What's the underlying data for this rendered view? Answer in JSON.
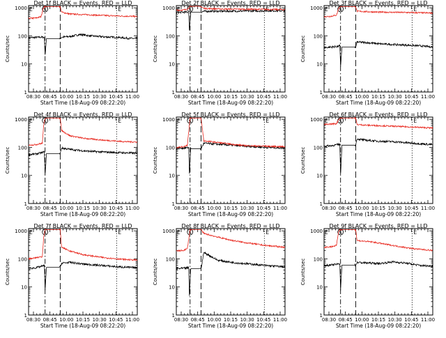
{
  "figure": {
    "colors": {
      "events": "#000000",
      "lld": "#e8261c",
      "axis": "#000000",
      "background": "#ffffff"
    },
    "common": {
      "xlabel": "Start Time (18-Aug-09 08:22:20)",
      "ylabel": "Counts/sec",
      "x_ticks": [
        "08:30",
        "08:45",
        "10:00",
        "10:15",
        "10:30",
        "10:45",
        "11:00"
      ],
      "y_ticks": [
        "1",
        "10",
        "100",
        "1000"
      ],
      "y_scale": "log",
      "ylim": [
        1,
        1200
      ],
      "xlim_minutes": [
        0,
        158
      ],
      "markers": [
        {
          "label": "S",
          "style": "dash-dot",
          "x_minute": 24
        },
        {
          "label": "",
          "style": "dashed",
          "x_minute": 46
        },
        {
          "label": "E",
          "style": "dotted",
          "x_minute": 128
        }
      ]
    }
  },
  "chart_data": [
    {
      "type": "line",
      "title": "Det 1f BLACK = Events, RED = LLD",
      "saa": [
        24,
        46
      ],
      "markers_start": "E",
      "series": [
        {
          "name": "Events",
          "points": [
            [
              0,
              85
            ],
            [
              10,
              88
            ],
            [
              20,
              90
            ],
            [
              23,
              88
            ],
            [
              24,
              20
            ],
            [
              26,
              80
            ],
            [
              46,
              80
            ],
            [
              48,
              90
            ],
            [
              60,
              95
            ],
            [
              75,
              112
            ],
            [
              90,
              100
            ],
            [
              110,
              92
            ],
            [
              130,
              88
            ],
            [
              145,
              82
            ],
            [
              158,
              80
            ]
          ]
        },
        {
          "name": "LLD",
          "points": [
            [
              0,
              420
            ],
            [
              10,
              430
            ],
            [
              18,
              480
            ],
            [
              21,
              900
            ],
            [
              23,
              1100
            ],
            [
              46,
              1100
            ],
            [
              48,
              700
            ],
            [
              60,
              600
            ],
            [
              90,
              560
            ],
            [
              120,
              520
            ],
            [
              145,
              500
            ],
            [
              158,
              490
            ]
          ]
        }
      ]
    },
    {
      "type": "line",
      "title": "Det 2f BLACK = Events, RED = LLD",
      "saa": [
        20,
        36
      ],
      "markers_start": "E",
      "series": [
        {
          "name": "Events",
          "points": [
            [
              0,
              680
            ],
            [
              10,
              700
            ],
            [
              18,
              700
            ],
            [
              19,
              150
            ],
            [
              21,
              700
            ],
            [
              36,
              700
            ],
            [
              40,
              750
            ],
            [
              80,
              760
            ],
            [
              130,
              780
            ],
            [
              158,
              790
            ]
          ]
        },
        {
          "name": "LLD",
          "points": [
            [
              0,
              820
            ],
            [
              10,
              830
            ],
            [
              16,
              900
            ],
            [
              20,
              1100
            ],
            [
              30,
              1150
            ],
            [
              36,
              1100
            ],
            [
              40,
              950
            ],
            [
              70,
              900
            ],
            [
              130,
              880
            ],
            [
              158,
              860
            ]
          ]
        }
      ]
    },
    {
      "type": "line",
      "title": "Det 3f BLACK = Events, RED = LLD",
      "saa": [
        24,
        46
      ],
      "markers_start": "E",
      "series": [
        {
          "name": "Events",
          "points": [
            [
              0,
              38
            ],
            [
              10,
              40
            ],
            [
              20,
              42
            ],
            [
              23,
              45
            ],
            [
              24,
              8
            ],
            [
              26,
              40
            ],
            [
              46,
              40
            ],
            [
              48,
              60
            ],
            [
              60,
              58
            ],
            [
              80,
              52
            ],
            [
              110,
              48
            ],
            [
              140,
              44
            ],
            [
              158,
              40
            ]
          ]
        },
        {
          "name": "LLD",
          "points": [
            [
              0,
              480
            ],
            [
              10,
              500
            ],
            [
              18,
              550
            ],
            [
              21,
              900
            ],
            [
              23,
              1100
            ],
            [
              46,
              1100
            ],
            [
              48,
              750
            ],
            [
              80,
              700
            ],
            [
              120,
              680
            ],
            [
              158,
              650
            ]
          ]
        }
      ]
    },
    {
      "type": "line",
      "title": "Det 4f BLACK = Events, RED = LLD",
      "saa": [
        24,
        46
      ],
      "markers_start": "E",
      "series": [
        {
          "name": "Events",
          "points": [
            [
              0,
              55
            ],
            [
              10,
              58
            ],
            [
              20,
              65
            ],
            [
              23,
              70
            ],
            [
              24,
              10
            ],
            [
              26,
              60
            ],
            [
              46,
              60
            ],
            [
              48,
              95
            ],
            [
              60,
              85
            ],
            [
              80,
              75
            ],
            [
              100,
              70
            ],
            [
              130,
              65
            ],
            [
              158,
              62
            ]
          ]
        },
        {
          "name": "LLD",
          "points": [
            [
              0,
              120
            ],
            [
              10,
              125
            ],
            [
              20,
              140
            ],
            [
              22,
              600
            ],
            [
              24,
              1100
            ],
            [
              46,
              1100
            ],
            [
              48,
              400
            ],
            [
              60,
              260
            ],
            [
              80,
              210
            ],
            [
              110,
              180
            ],
            [
              140,
              160
            ],
            [
              158,
              155
            ]
          ]
        }
      ]
    },
    {
      "type": "line",
      "title": "Det 5f BLACK = Events, RED = LLD",
      "saa": [
        20,
        36
      ],
      "markers_start": "E",
      "series": [
        {
          "name": "Events",
          "points": [
            [
              0,
              92
            ],
            [
              10,
              95
            ],
            [
              18,
              98
            ],
            [
              19,
              12
            ],
            [
              21,
              90
            ],
            [
              36,
              90
            ],
            [
              40,
              140
            ],
            [
              60,
              130
            ],
            [
              80,
              120
            ],
            [
              100,
              110
            ],
            [
              130,
              100
            ],
            [
              158,
              95
            ]
          ]
        },
        {
          "name": "LLD",
          "points": [
            [
              0,
              100
            ],
            [
              10,
              105
            ],
            [
              16,
              120
            ],
            [
              20,
              1100
            ],
            [
              30,
              1100
            ],
            [
              36,
              1100
            ],
            [
              40,
              170
            ],
            [
              60,
              150
            ],
            [
              80,
              130
            ],
            [
              100,
              115
            ],
            [
              130,
              110
            ],
            [
              158,
              105
            ]
          ]
        }
      ]
    },
    {
      "type": "line",
      "title": "Det 6f BLACK = Events, RED = LLD",
      "saa": [
        24,
        46
      ],
      "markers_start": "E",
      "series": [
        {
          "name": "Events",
          "points": [
            [
              0,
              110
            ],
            [
              10,
              115
            ],
            [
              20,
              125
            ],
            [
              23,
              130
            ],
            [
              24,
              10
            ],
            [
              26,
              120
            ],
            [
              46,
              120
            ],
            [
              48,
              200
            ],
            [
              60,
              180
            ],
            [
              80,
              165
            ],
            [
              100,
              160
            ],
            [
              130,
              140
            ],
            [
              158,
              125
            ]
          ]
        },
        {
          "name": "LLD",
          "points": [
            [
              0,
              650
            ],
            [
              10,
              680
            ],
            [
              18,
              700
            ],
            [
              21,
              950
            ],
            [
              23,
              1100
            ],
            [
              46,
              1100
            ],
            [
              48,
              650
            ],
            [
              60,
              620
            ],
            [
              90,
              580
            ],
            [
              120,
              540
            ],
            [
              158,
              490
            ]
          ]
        }
      ]
    },
    {
      "type": "line",
      "title": "Det 7f BLACK = Events, RED = LLD",
      "saa": [
        24,
        46
      ],
      "markers_start": "E",
      "series": [
        {
          "name": "Events",
          "points": [
            [
              0,
              45
            ],
            [
              10,
              48
            ],
            [
              20,
              55
            ],
            [
              23,
              58
            ],
            [
              24,
              8
            ],
            [
              26,
              50
            ],
            [
              46,
              50
            ],
            [
              48,
              70
            ],
            [
              60,
              75
            ],
            [
              80,
              65
            ],
            [
              100,
              60
            ],
            [
              130,
              52
            ],
            [
              158,
              48
            ]
          ]
        },
        {
          "name": "LLD",
          "points": [
            [
              0,
              100
            ],
            [
              10,
              110
            ],
            [
              20,
              120
            ],
            [
              22,
              600
            ],
            [
              24,
              1100
            ],
            [
              46,
              1100
            ],
            [
              48,
              260
            ],
            [
              60,
              190
            ],
            [
              80,
              140
            ],
            [
              110,
              110
            ],
            [
              140,
              95
            ],
            [
              158,
              90
            ]
          ]
        }
      ]
    },
    {
      "type": "line",
      "title": "Det 8f BLACK = Events, RED = LLD",
      "saa": [
        20,
        36
      ],
      "markers_start": "E",
      "series": [
        {
          "name": "Events",
          "points": [
            [
              0,
              45
            ],
            [
              10,
              46
            ],
            [
              18,
              48
            ],
            [
              19,
              5
            ],
            [
              21,
              45
            ],
            [
              36,
              45
            ],
            [
              40,
              170
            ],
            [
              60,
              90
            ],
            [
              80,
              75
            ],
            [
              100,
              68
            ],
            [
              130,
              58
            ],
            [
              158,
              52
            ]
          ]
        },
        {
          "name": "LLD",
          "points": [
            [
              0,
              190
            ],
            [
              10,
              200
            ],
            [
              16,
              230
            ],
            [
              20,
              1100
            ],
            [
              30,
              1100
            ],
            [
              36,
              1100
            ],
            [
              40,
              800
            ],
            [
              60,
              600
            ],
            [
              80,
              460
            ],
            [
              100,
              380
            ],
            [
              130,
              300
            ],
            [
              158,
              260
            ]
          ]
        }
      ]
    },
    {
      "type": "line",
      "title": "Det 9f BLACK = Events, RED = LLD",
      "saa": [
        24,
        46
      ],
      "markers_start": "E",
      "series": [
        {
          "name": "Events",
          "points": [
            [
              0,
              58
            ],
            [
              10,
              60
            ],
            [
              20,
              65
            ],
            [
              23,
              68
            ],
            [
              24,
              8
            ],
            [
              26,
              60
            ],
            [
              46,
              60
            ],
            [
              48,
              75
            ],
            [
              60,
              72
            ],
            [
              80,
              68
            ],
            [
              100,
              78
            ],
            [
              120,
              70
            ],
            [
              140,
              58
            ],
            [
              158,
              55
            ]
          ]
        },
        {
          "name": "LLD",
          "points": [
            [
              0,
              260
            ],
            [
              10,
              270
            ],
            [
              18,
              300
            ],
            [
              21,
              900
            ],
            [
              23,
              1100
            ],
            [
              46,
              1100
            ],
            [
              48,
              450
            ],
            [
              70,
              400
            ],
            [
              100,
              300
            ],
            [
              130,
              230
            ],
            [
              158,
              200
            ]
          ]
        }
      ]
    }
  ]
}
